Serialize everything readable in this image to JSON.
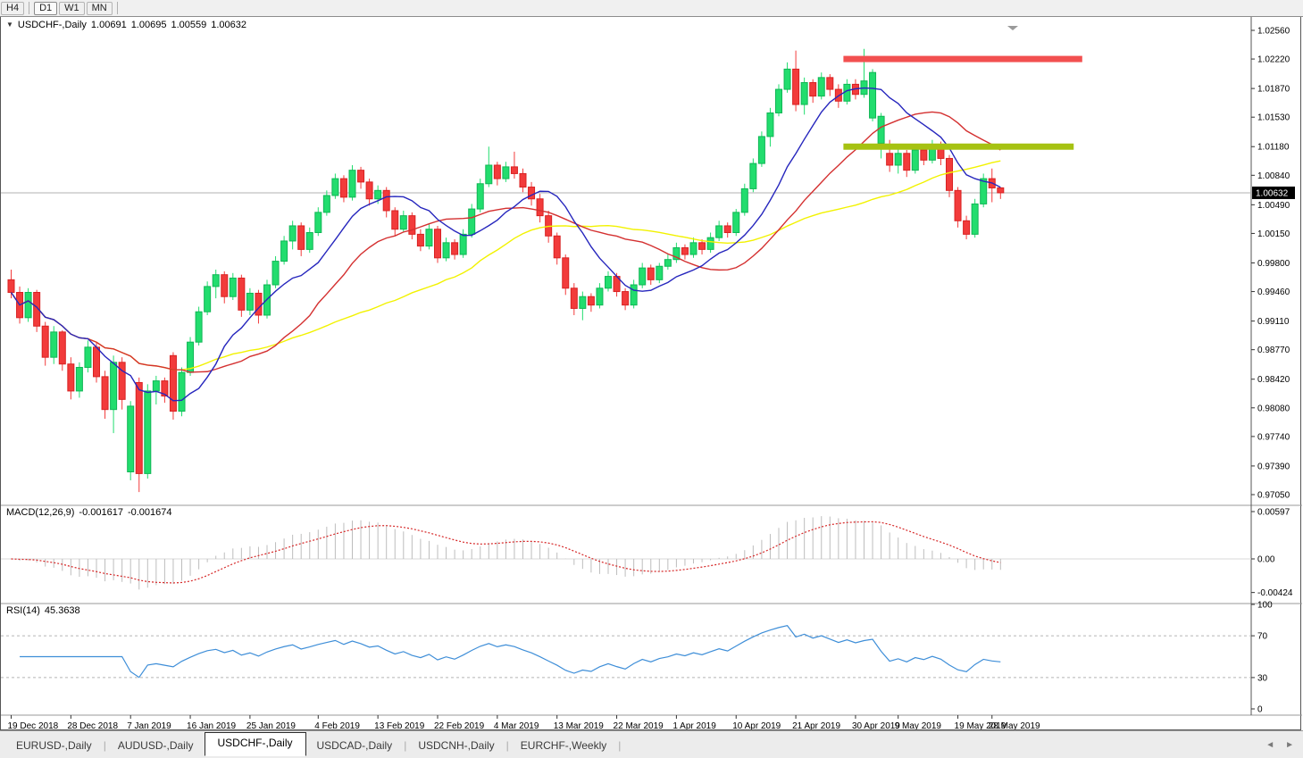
{
  "toolbar": {
    "buttons": [
      {
        "label": "H4",
        "active": false
      },
      {
        "label": "D1",
        "active": true
      },
      {
        "label": "W1",
        "active": false
      },
      {
        "label": "MN",
        "active": false
      }
    ]
  },
  "chart": {
    "title": "USDCHF-,Daily",
    "collapse_icon": "▼",
    "shift_marker_icon": "▼",
    "ohlc": {
      "open": "1.00691",
      "high": "1.00695",
      "low": "1.00559",
      "close": "1.00632"
    },
    "price_tag": "1.00632"
  },
  "indicators": {
    "macd": {
      "label": "MACD(12,26,9)",
      "value_main": "-0.001617",
      "value_signal": "-0.001674",
      "y_ticks": [
        "0.00597",
        "0.00",
        "-0.00424"
      ]
    },
    "rsi": {
      "label": "RSI(14)",
      "value": "45.3638",
      "y_ticks": [
        "100",
        "70",
        "30",
        "0"
      ],
      "levels": [
        70,
        30
      ]
    }
  },
  "tabs": {
    "items": [
      {
        "label": "EURUSD-,Daily",
        "active": false
      },
      {
        "label": "AUDUSD-,Daily",
        "active": false
      },
      {
        "label": "USDCHF-,Daily",
        "active": true
      },
      {
        "label": "USDCAD-,Daily",
        "active": false
      },
      {
        "label": "USDCNH-,Daily",
        "active": false
      },
      {
        "label": "EURCHF-,Weekly",
        "active": false
      }
    ],
    "scroll_left_icon": "◄",
    "scroll_right_icon": "►"
  },
  "chart_data": {
    "type": "candlestick",
    "symbol": "USDCHF-",
    "timeframe": "Daily",
    "y_range": [
      0.9705,
      1.0256
    ],
    "y_ticks": [
      "1.02560",
      "1.02220",
      "1.01870",
      "1.01530",
      "1.01180",
      "1.00840",
      "1.00490",
      "1.00150",
      "0.99800",
      "0.99460",
      "0.99110",
      "0.98770",
      "0.98420",
      "0.98080",
      "0.97740",
      "0.97390",
      "0.97050"
    ],
    "x_labels": [
      {
        "index": 0,
        "label": "19 Dec 2018"
      },
      {
        "index": 7,
        "label": "28 Dec 2018"
      },
      {
        "index": 14,
        "label": "7 Jan 2019"
      },
      {
        "index": 21,
        "label": "16 Jan 2019"
      },
      {
        "index": 28,
        "label": "25 Jan 2019"
      },
      {
        "index": 36,
        "label": "4 Feb 2019"
      },
      {
        "index": 43,
        "label": "13 Feb 2019"
      },
      {
        "index": 50,
        "label": "22 Feb 2019"
      },
      {
        "index": 57,
        "label": "4 Mar 2019"
      },
      {
        "index": 64,
        "label": "13 Mar 2019"
      },
      {
        "index": 71,
        "label": "22 Mar 2019"
      },
      {
        "index": 78,
        "label": "1 Apr 2019"
      },
      {
        "index": 85,
        "label": "10 Apr 2019"
      },
      {
        "index": 92,
        "label": "21 Apr 2019"
      },
      {
        "index": 99,
        "label": "30 Apr 2019"
      },
      {
        "index": 104,
        "label": "9 May 2019"
      },
      {
        "index": 111,
        "label": "19 May 2019"
      },
      {
        "index": 115,
        "label": "28 May 2019"
      }
    ],
    "candles": [
      [
        0.996,
        0.9972,
        0.9938,
        0.9945
      ],
      [
        0.9945,
        0.9952,
        0.9908,
        0.9915
      ],
      [
        0.9915,
        0.995,
        0.991,
        0.9945
      ],
      [
        0.9945,
        0.9948,
        0.9898,
        0.9905
      ],
      [
        0.9905,
        0.991,
        0.9858,
        0.9868
      ],
      [
        0.9868,
        0.9905,
        0.986,
        0.9898
      ],
      [
        0.9898,
        0.99,
        0.9852,
        0.986
      ],
      [
        0.986,
        0.9868,
        0.9818,
        0.9828
      ],
      [
        0.9828,
        0.9862,
        0.982,
        0.9856
      ],
      [
        0.9856,
        0.9888,
        0.985,
        0.988
      ],
      [
        0.988,
        0.9885,
        0.9838,
        0.9845
      ],
      [
        0.9845,
        0.9852,
        0.9795,
        0.9806
      ],
      [
        0.9806,
        0.987,
        0.9778,
        0.9862
      ],
      [
        0.9862,
        0.9868,
        0.9806,
        0.9818
      ],
      [
        0.9732,
        0.9816,
        0.9722,
        0.981
      ],
      [
        0.9838,
        0.9844,
        0.9708,
        0.973
      ],
      [
        0.973,
        0.9836,
        0.9724,
        0.9828
      ],
      [
        0.9828,
        0.9846,
        0.9812,
        0.984
      ],
      [
        0.984,
        0.9844,
        0.9814,
        0.9822
      ],
      [
        0.987,
        0.9874,
        0.9794,
        0.9804
      ],
      [
        0.9804,
        0.9856,
        0.9798,
        0.985
      ],
      [
        0.985,
        0.9892,
        0.9846,
        0.9886
      ],
      [
        0.9886,
        0.9928,
        0.9882,
        0.9922
      ],
      [
        0.9922,
        0.9958,
        0.9918,
        0.9952
      ],
      [
        0.9952,
        0.9972,
        0.9938,
        0.9966
      ],
      [
        0.9966,
        0.997,
        0.9932,
        0.994
      ],
      [
        0.994,
        0.9968,
        0.9936,
        0.9962
      ],
      [
        0.9962,
        0.9966,
        0.9916,
        0.9924
      ],
      [
        0.9924,
        0.995,
        0.9918,
        0.9944
      ],
      [
        0.9944,
        0.9948,
        0.9908,
        0.9918
      ],
      [
        0.9918,
        0.996,
        0.9914,
        0.9954
      ],
      [
        0.9954,
        0.9988,
        0.995,
        0.9982
      ],
      [
        0.9982,
        1.0012,
        0.9978,
        1.0006
      ],
      [
        1.0006,
        1.003,
        0.9996,
        1.0024
      ],
      [
        1.0024,
        1.0028,
        0.9988,
        0.9996
      ],
      [
        0.9996,
        1.0022,
        0.9992,
        1.0016
      ],
      [
        1.0016,
        1.0046,
        1.0012,
        1.004
      ],
      [
        1.004,
        1.0066,
        1.0036,
        1.006
      ],
      [
        1.006,
        1.0086,
        1.0056,
        1.008
      ],
      [
        1.008,
        1.0084,
        1.0052,
        1.0058
      ],
      [
        1.0058,
        1.0096,
        1.0054,
        1.009
      ],
      [
        1.009,
        1.0094,
        1.0068,
        1.0076
      ],
      [
        1.0076,
        1.008,
        1.0048,
        1.0056
      ],
      [
        1.0056,
        1.0072,
        1.005,
        1.0066
      ],
      [
        1.0066,
        1.007,
        1.0034,
        1.0042
      ],
      [
        1.0042,
        1.0046,
        1.0012,
        1.002
      ],
      [
        1.002,
        1.0042,
        1.0016,
        1.0036
      ],
      [
        1.0036,
        1.004,
        1.0008,
        1.0014
      ],
      [
        1.0014,
        1.002,
        0.9994,
        1.0
      ],
      [
        1.0,
        1.0026,
        0.9996,
        1.002
      ],
      [
        1.002,
        1.0024,
        0.998,
        0.9986
      ],
      [
        0.9986,
        1.001,
        0.9982,
        1.0004
      ],
      [
        1.0004,
        1.0008,
        0.9984,
        0.999
      ],
      [
        0.999,
        1.002,
        0.9986,
        1.0014
      ],
      [
        1.0014,
        1.005,
        1.001,
        1.0044
      ],
      [
        1.0044,
        1.008,
        1.004,
        1.0074
      ],
      [
        1.0074,
        1.0118,
        1.007,
        1.0096
      ],
      [
        1.0096,
        1.01,
        1.0072,
        1.008
      ],
      [
        1.008,
        1.01,
        1.0076,
        1.0094
      ],
      [
        1.0094,
        1.0112,
        1.008,
        1.0086
      ],
      [
        1.0086,
        1.0092,
        1.0064,
        1.007
      ],
      [
        1.007,
        1.0076,
        1.0048,
        1.0056
      ],
      [
        1.0056,
        1.0062,
        1.0028,
        1.0036
      ],
      [
        1.0036,
        1.0042,
        1.0004,
        1.0012
      ],
      [
        1.0012,
        1.0016,
        0.9978,
        0.9986
      ],
      [
        0.9986,
        0.999,
        0.9942,
        0.995
      ],
      [
        0.995,
        0.9956,
        0.9918,
        0.9926
      ],
      [
        0.9926,
        0.9946,
        0.9912,
        0.994
      ],
      [
        0.994,
        0.9944,
        0.9922,
        0.993
      ],
      [
        0.993,
        0.9956,
        0.9926,
        0.995
      ],
      [
        0.995,
        0.997,
        0.9946,
        0.9964
      ],
      [
        0.9964,
        0.9968,
        0.994,
        0.9946
      ],
      [
        0.9946,
        0.995,
        0.9924,
        0.993
      ],
      [
        0.993,
        0.996,
        0.9926,
        0.9954
      ],
      [
        0.9954,
        0.998,
        0.995,
        0.9974
      ],
      [
        0.9974,
        0.9978,
        0.9954,
        0.996
      ],
      [
        0.996,
        0.998,
        0.9956,
        0.9976
      ],
      [
        0.9976,
        0.999,
        0.9972,
        0.9984
      ],
      [
        0.9984,
        1.0004,
        0.998,
        0.9998
      ],
      [
        0.9998,
        1.0002,
        0.9984,
        0.999
      ],
      [
        0.999,
        1.001,
        0.9986,
        1.0004
      ],
      [
        1.0004,
        1.0008,
        0.999,
        0.9996
      ],
      [
        0.9996,
        1.0016,
        0.9992,
        1.001
      ],
      [
        1.001,
        1.003,
        1.0006,
        1.0024
      ],
      [
        1.0024,
        1.0028,
        1.001,
        1.0016
      ],
      [
        1.0016,
        1.0044,
        1.0012,
        1.004
      ],
      [
        1.004,
        1.0074,
        1.0036,
        1.0068
      ],
      [
        1.0068,
        1.0104,
        1.0064,
        1.0098
      ],
      [
        1.0098,
        1.0136,
        1.0094,
        1.013
      ],
      [
        1.013,
        1.0164,
        1.0118,
        1.0158
      ],
      [
        1.0158,
        1.0192,
        1.0154,
        1.0186
      ],
      [
        1.0186,
        1.0218,
        1.0182,
        1.021
      ],
      [
        1.021,
        1.0232,
        1.016,
        1.0168
      ],
      [
        1.0168,
        1.02,
        1.0156,
        1.0194
      ],
      [
        1.0194,
        1.0198,
        1.017,
        1.0178
      ],
      [
        1.0178,
        1.0206,
        1.0174,
        1.02
      ],
      [
        1.02,
        1.0204,
        1.0178,
        1.0186
      ],
      [
        1.0186,
        1.0192,
        1.0164,
        1.0172
      ],
      [
        1.0172,
        1.0198,
        1.0168,
        1.0192
      ],
      [
        1.0192,
        1.0198,
        1.0174,
        1.018
      ],
      [
        1.018,
        1.0234,
        1.0176,
        1.0196
      ],
      [
        1.0152,
        1.021,
        1.0148,
        1.0206
      ],
      [
        1.0122,
        1.0158,
        1.0104,
        1.0154
      ],
      [
        1.011,
        1.0126,
        1.0088,
        1.0096
      ],
      [
        1.0096,
        1.0116,
        1.0086,
        1.011
      ],
      [
        1.011,
        1.0114,
        1.0082,
        1.009
      ],
      [
        1.009,
        1.012,
        1.0086,
        1.0114
      ],
      [
        1.0114,
        1.0118,
        1.0096,
        1.0102
      ],
      [
        1.0102,
        1.0126,
        1.0098,
        1.012
      ],
      [
        1.012,
        1.0124,
        1.0096,
        1.0104
      ],
      [
        1.0104,
        1.0108,
        1.0058,
        1.0066
      ],
      [
        1.0066,
        1.007,
        1.0022,
        1.003
      ],
      [
        1.003,
        1.0036,
        1.0008,
        1.0014
      ],
      [
        1.0014,
        1.0056,
        1.001,
        1.005
      ],
      [
        1.005,
        1.0086,
        1.0046,
        1.008
      ],
      [
        1.008,
        1.0092,
        1.0052,
        1.0069
      ],
      [
        1.00691,
        1.00695,
        1.00559,
        1.00632
      ]
    ],
    "moving_averages": [
      {
        "period": 40,
        "color": "#f2f200"
      },
      {
        "period": 21,
        "color": "#d43030"
      },
      {
        "period": 10,
        "color": "#2626bd"
      }
    ],
    "levels": [
      {
        "price": 1.0222,
        "color": "#f25050",
        "start_index": 98,
        "end_index": 126
      },
      {
        "price": 1.0118,
        "color": "#a6c212",
        "start_index": 98,
        "end_index": 125
      }
    ],
    "current_price": 1.00632,
    "colors": {
      "bull": "#22dd6e",
      "bull_edge": "#10b655",
      "bear": "#f23b3b",
      "bear_edge": "#d82222",
      "macd_hist": "#bdbdbd",
      "macd_signal": "#d62828",
      "rsi_line": "#3e8ed8",
      "level_dotted": "#b5b5b5",
      "price_line": "#b0b0b0",
      "axis_line": "#555555"
    }
  }
}
